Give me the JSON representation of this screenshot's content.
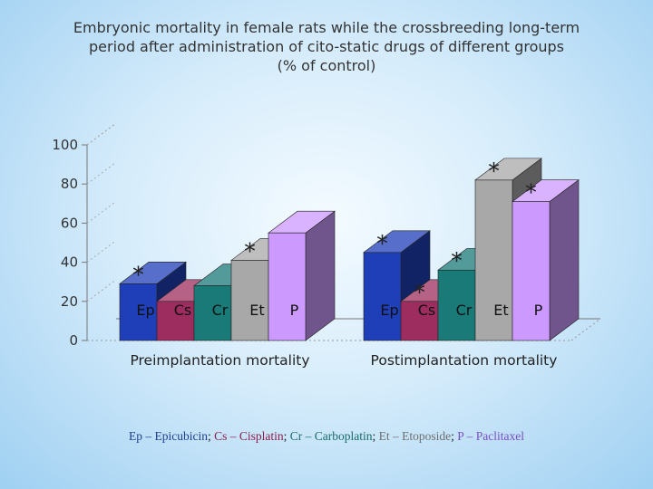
{
  "title_lines": [
    "Embryonic mortality in female rats while the crossbreeding long-term",
    "period after administration of cito-static drugs of different groups",
    "(% of control)"
  ],
  "chart_data": {
    "type": "bar",
    "style": "3d",
    "categories": [
      "Preimplantation mortality",
      "Postimplantation mortality"
    ],
    "series": [
      {
        "name": "Ep",
        "color": "#1f3fb8",
        "values": [
          29,
          45
        ]
      },
      {
        "name": "Cs",
        "color": "#9c2d5e",
        "values": [
          20,
          20
        ]
      },
      {
        "name": "Cr",
        "color": "#1a7a78",
        "values": [
          28,
          36
        ]
      },
      {
        "name": "Et",
        "color": "#a8a8a8",
        "values": [
          41,
          82
        ]
      },
      {
        "name": "P",
        "color": "#cc99ff",
        "values": [
          55,
          71
        ]
      }
    ],
    "significance_markers": [
      {
        "category": 0,
        "series": 0,
        "label": "*"
      },
      {
        "category": 0,
        "series": 3,
        "label": "*"
      },
      {
        "category": 1,
        "series": 0,
        "label": "*"
      },
      {
        "category": 1,
        "series": 1,
        "label": "*"
      },
      {
        "category": 1,
        "series": 2,
        "label": "*"
      },
      {
        "category": 1,
        "series": 3,
        "label": "*"
      },
      {
        "category": 1,
        "series": 4,
        "label": "*"
      }
    ],
    "yticks": [
      0,
      20,
      40,
      60,
      80,
      100
    ],
    "ylim": [
      0,
      100
    ],
    "grid": false,
    "legend": "bottom"
  },
  "legend_items": [
    {
      "abbr": "Ep",
      "sep": " – ",
      "full": "Epicubicin",
      "color": "#1f3f8f"
    },
    {
      "abbr": "Cs",
      "sep": " – ",
      "full": "Cisplatin",
      "color": "#8b1f4c"
    },
    {
      "abbr": "Cr",
      "sep": " – ",
      "full": "Carboplatin",
      "color": "#1a6b6a"
    },
    {
      "abbr": "Et",
      "sep": " – ",
      "full": "Etoposide",
      "color": "#6f6f6f"
    },
    {
      "abbr": "P",
      "sep": " – ",
      "full": "Paclitaxel",
      "color": "#7a4fc4"
    }
  ],
  "legend_delimiter": "; "
}
